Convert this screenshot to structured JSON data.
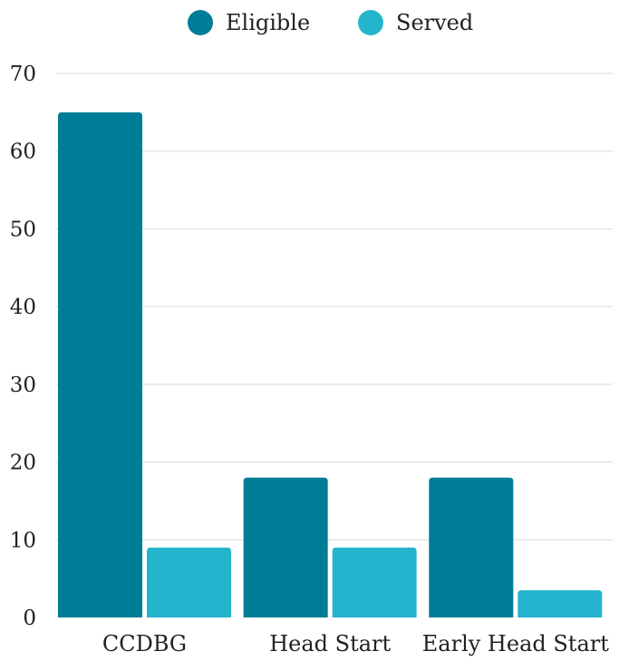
{
  "chart_data": {
    "type": "bar",
    "title": "",
    "xlabel": "",
    "ylabel": "",
    "categories": [
      "CCDBG",
      "Head Start",
      "Early Head Start"
    ],
    "series": [
      {
        "name": "Eligible",
        "color": "#007d96",
        "values": [
          65,
          18,
          18
        ]
      },
      {
        "name": "Served",
        "color": "#25b4ce",
        "values": [
          9,
          9,
          3.5
        ]
      }
    ],
    "ylim": [
      0,
      70
    ],
    "yticks": [
      0,
      10,
      20,
      30,
      40,
      50,
      60,
      70
    ],
    "grid": true,
    "legend_position": "top-center"
  }
}
